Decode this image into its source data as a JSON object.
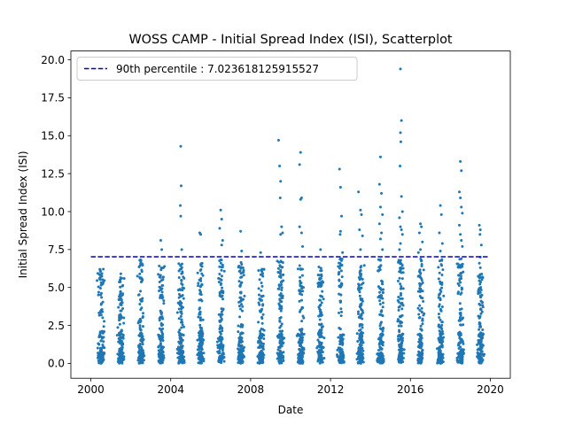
{
  "chart_data": {
    "type": "scatter",
    "title": "WOSS CAMP - Initial Spread Index (ISI), Scatterplot",
    "xlabel": "Date",
    "ylabel": "Initial Spread Index (ISI)",
    "xlim": [
      1999.0,
      2021.0
    ],
    "ylim": [
      -0.98,
      20.58
    ],
    "x_ticks": [
      {
        "value": 2000,
        "label": "2000"
      },
      {
        "value": 2004,
        "label": "2004"
      },
      {
        "value": 2008,
        "label": "2008"
      },
      {
        "value": 2012,
        "label": "2012"
      },
      {
        "value": 2016,
        "label": "2016"
      },
      {
        "value": 2020,
        "label": "2020"
      }
    ],
    "y_ticks": [
      {
        "value": 0.0,
        "label": "0.0"
      },
      {
        "value": 2.5,
        "label": "2.5"
      },
      {
        "value": 5.0,
        "label": "5.0"
      },
      {
        "value": 7.5,
        "label": "7.5"
      },
      {
        "value": 10.0,
        "label": "10.0"
      },
      {
        "value": 12.5,
        "label": "12.5"
      },
      {
        "value": 15.0,
        "label": "15.0"
      },
      {
        "value": 17.5,
        "label": "17.5"
      },
      {
        "value": 20.0,
        "label": "20.0"
      }
    ],
    "grid": false,
    "legend_position": "top-left",
    "colors": {
      "points": "#1f77b4",
      "percentile_line": "#0000cc"
    },
    "percentile_line": {
      "label": "90th percentile : 7.023618125915527",
      "value": 7.0236,
      "x_range": [
        2000.0,
        2019.9
      ]
    },
    "seasons": [
      {
        "year": 2000,
        "max": 6.4,
        "extremes": [
          [
            2000.45,
            6.2
          ]
        ]
      },
      {
        "year": 2001,
        "max": 5.8,
        "extremes": [
          [
            2001.5,
            5.9
          ],
          [
            2001.55,
            5.6
          ]
        ]
      },
      {
        "year": 2002,
        "max": 6.9,
        "extremes": [
          [
            2002.45,
            6.8
          ],
          [
            2002.5,
            6.6
          ]
        ]
      },
      {
        "year": 2003,
        "max": 6.6,
        "extremes": [
          [
            2003.5,
            8.1
          ],
          [
            2003.55,
            7.5
          ]
        ]
      },
      {
        "year": 2004,
        "max": 6.6,
        "extremes": [
          [
            2004.5,
            14.3
          ],
          [
            2004.52,
            11.7
          ],
          [
            2004.48,
            10.4
          ],
          [
            2004.5,
            9.7
          ],
          [
            2004.55,
            7.5
          ]
        ]
      },
      {
        "year": 2005,
        "max": 6.6,
        "extremes": [
          [
            2005.45,
            8.6
          ],
          [
            2005.5,
            8.5
          ]
        ]
      },
      {
        "year": 2006,
        "max": 6.9,
        "extremes": [
          [
            2006.5,
            10.1
          ],
          [
            2006.55,
            9.5
          ],
          [
            2006.45,
            8.9
          ],
          [
            2006.6,
            8.1
          ],
          [
            2006.55,
            7.8
          ]
        ]
      },
      {
        "year": 2007,
        "max": 6.8,
        "extremes": [
          [
            2007.5,
            8.7
          ],
          [
            2007.55,
            7.4
          ]
        ]
      },
      {
        "year": 2008,
        "max": 6.3,
        "extremes": [
          [
            2008.5,
            7.3
          ]
        ]
      },
      {
        "year": 2009,
        "max": 6.9,
        "extremes": [
          [
            2009.4,
            14.7
          ],
          [
            2009.45,
            13.0
          ],
          [
            2009.5,
            12.0
          ],
          [
            2009.48,
            10.9
          ],
          [
            2009.55,
            9.0
          ],
          [
            2009.6,
            8.6
          ],
          [
            2009.5,
            8.5
          ]
        ]
      },
      {
        "year": 2010,
        "max": 6.8,
        "extremes": [
          [
            2010.5,
            13.9
          ],
          [
            2010.45,
            13.1
          ],
          [
            2010.55,
            10.9
          ],
          [
            2010.5,
            10.8
          ],
          [
            2010.45,
            9.0
          ],
          [
            2010.55,
            8.6
          ],
          [
            2010.6,
            7.7
          ]
        ]
      },
      {
        "year": 2011,
        "max": 6.6,
        "extremes": [
          [
            2011.5,
            7.5
          ]
        ]
      },
      {
        "year": 2012,
        "max": 6.9,
        "extremes": [
          [
            2012.45,
            12.8
          ],
          [
            2012.5,
            11.6
          ],
          [
            2012.55,
            9.7
          ],
          [
            2012.5,
            8.7
          ],
          [
            2012.48,
            8.5
          ],
          [
            2012.6,
            7.3
          ]
        ]
      },
      {
        "year": 2013,
        "max": 6.6,
        "extremes": [
          [
            2013.4,
            11.3
          ],
          [
            2013.5,
            10.1
          ],
          [
            2013.55,
            9.8
          ],
          [
            2013.45,
            8.8
          ],
          [
            2013.6,
            8.4
          ],
          [
            2013.5,
            7.5
          ]
        ]
      },
      {
        "year": 2014,
        "max": 6.9,
        "extremes": [
          [
            2014.5,
            13.6
          ],
          [
            2014.45,
            11.8
          ],
          [
            2014.55,
            11.2
          ],
          [
            2014.5,
            10.3
          ],
          [
            2014.6,
            9.8
          ],
          [
            2014.45,
            9.2
          ],
          [
            2014.55,
            8.6
          ],
          [
            2014.5,
            8.2
          ],
          [
            2014.6,
            7.5
          ]
        ]
      },
      {
        "year": 2015,
        "max": 6.9,
        "extremes": [
          [
            2015.5,
            19.4
          ],
          [
            2015.55,
            16.0
          ],
          [
            2015.5,
            15.2
          ],
          [
            2015.52,
            14.6
          ],
          [
            2015.48,
            13.0
          ],
          [
            2015.55,
            11.0
          ],
          [
            2015.6,
            10.0
          ],
          [
            2015.45,
            9.6
          ],
          [
            2015.5,
            9.0
          ],
          [
            2015.55,
            8.8
          ],
          [
            2015.6,
            8.5
          ],
          [
            2015.5,
            7.9
          ],
          [
            2015.45,
            7.5
          ]
        ]
      },
      {
        "year": 2016,
        "max": 6.9,
        "extremes": [
          [
            2016.5,
            9.2
          ],
          [
            2016.55,
            9.0
          ],
          [
            2016.45,
            8.6
          ],
          [
            2016.6,
            8.0
          ],
          [
            2016.5,
            7.5
          ],
          [
            2016.4,
            7.3
          ]
        ]
      },
      {
        "year": 2017,
        "max": 6.9,
        "extremes": [
          [
            2017.5,
            10.4
          ],
          [
            2017.55,
            9.8
          ],
          [
            2017.45,
            8.6
          ],
          [
            2017.6,
            7.9
          ],
          [
            2017.5,
            7.4
          ]
        ]
      },
      {
        "year": 2018,
        "max": 6.9,
        "extremes": [
          [
            2018.5,
            13.3
          ],
          [
            2018.55,
            12.7
          ],
          [
            2018.45,
            11.3
          ],
          [
            2018.5,
            10.9
          ],
          [
            2018.55,
            10.3
          ],
          [
            2018.6,
            9.9
          ],
          [
            2018.45,
            9.1
          ],
          [
            2018.5,
            8.5
          ],
          [
            2018.55,
            8.1
          ],
          [
            2018.6,
            7.7
          ]
        ]
      },
      {
        "year": 2019,
        "max": 6.0,
        "extremes": [
          [
            2019.45,
            9.1
          ],
          [
            2019.5,
            8.8
          ],
          [
            2019.48,
            8.5
          ],
          [
            2019.55,
            7.8
          ],
          [
            2019.5,
            7.0
          ],
          [
            2019.45,
            6.6
          ],
          [
            2019.5,
            6.3
          ]
        ]
      }
    ]
  }
}
